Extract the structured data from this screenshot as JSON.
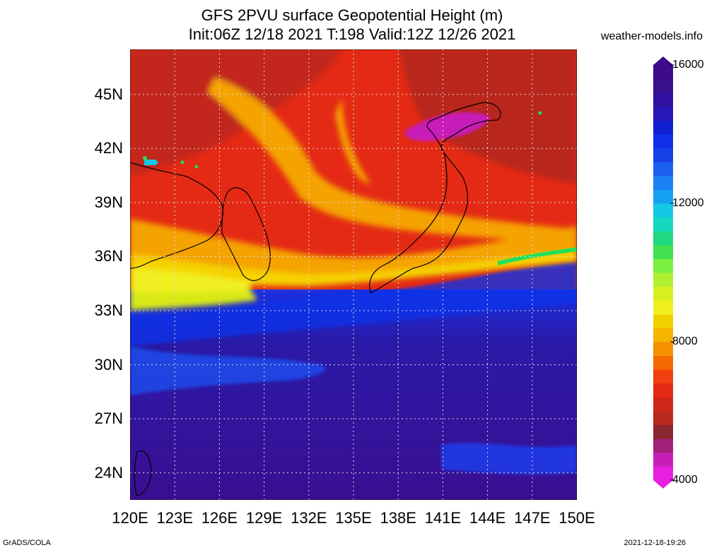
{
  "header": {
    "title_line1": "GFS 2PVU surface Geopotential Height (m)",
    "title_line2": "Init:06Z 12/18 2021 T:198 Valid:12Z 12/26 2021",
    "site": "weather-models.info"
  },
  "footer": {
    "left": "GrADS/COLA",
    "right": "2021-12-18-19:26"
  },
  "map": {
    "lon_range": [
      120,
      150
    ],
    "lat_range": [
      22.5,
      47.5
    ],
    "lon_ticks": [
      "120E",
      "123E",
      "126E",
      "129E",
      "132E",
      "135E",
      "138E",
      "141E",
      "144E",
      "147E",
      "150E"
    ],
    "lat_ticks": [
      "24N",
      "27N",
      "30N",
      "33N",
      "36N",
      "39N",
      "42N",
      "45N"
    ],
    "grid": true
  },
  "colorbar": {
    "labels": [
      "4000",
      "8000",
      "12000",
      "16000"
    ],
    "min": 4000,
    "max": 16000
  },
  "colors": {
    "deep_purple": "#3d0a8c",
    "indigo": "#2a1aa8",
    "blue": "#1030e8",
    "light_blue": "#1c6ff5",
    "cyan": "#14c8e6",
    "green": "#22e05a",
    "yellow": "#f0f020",
    "orange": "#f5a300",
    "red": "#f02a14",
    "dark_red": "#b8281e",
    "magenta": "#c81eb8"
  }
}
